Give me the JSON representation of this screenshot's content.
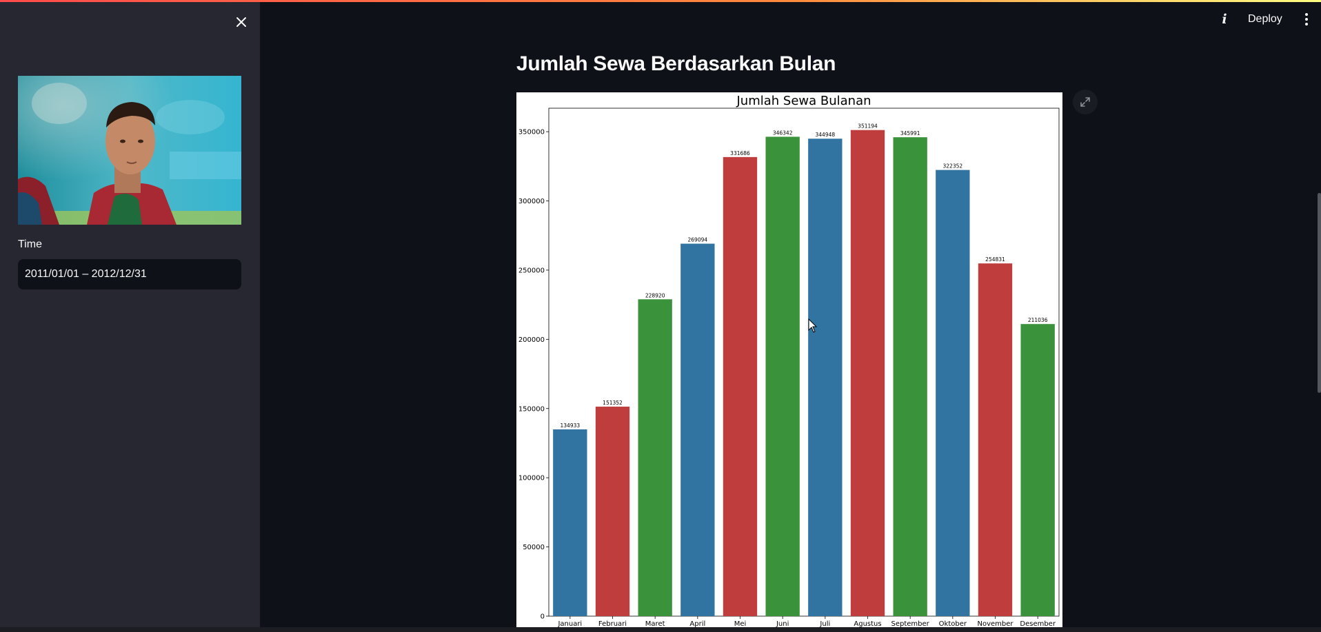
{
  "sidebar": {
    "close_icon": "close-icon",
    "photo_alt": "",
    "time_label": "Time",
    "date_range_value": "2011/01/01 – 2012/12/31"
  },
  "header": {
    "info_icon": "info-icon",
    "deploy_label": "Deploy",
    "menu_icon": "kebab-menu-icon"
  },
  "main": {
    "title": "Jumlah Sewa Berdasarkan Bulan",
    "expand_icon": "fullscreen-expand-icon"
  },
  "colors": {
    "background": "#0e1117",
    "sidebar": "#262730",
    "blue": "#3274a1",
    "red": "#c03d3e",
    "green": "#3a923a"
  },
  "chart_data": {
    "type": "bar",
    "title": "Jumlah Sewa Bulanan",
    "xlabel": "",
    "ylabel": "",
    "ylim": [
      0,
      360000
    ],
    "yticks": [
      0,
      50000,
      100000,
      150000,
      200000,
      250000,
      300000,
      350000
    ],
    "categories": [
      "Januari",
      "Februari",
      "Maret",
      "April",
      "Mei",
      "Juni",
      "Juli",
      "Agustus",
      "September",
      "Oktober",
      "November",
      "Desember"
    ],
    "values": [
      134933,
      151352,
      228920,
      269094,
      331686,
      346342,
      344948,
      351194,
      345991,
      322352,
      254831,
      211036
    ],
    "bar_colors": [
      "#3274a1",
      "#c03d3e",
      "#3a923a",
      "#3274a1",
      "#c03d3e",
      "#3a923a",
      "#3274a1",
      "#c03d3e",
      "#3a923a",
      "#3274a1",
      "#c03d3e",
      "#3a923a"
    ],
    "grid": false,
    "legend": "none"
  }
}
